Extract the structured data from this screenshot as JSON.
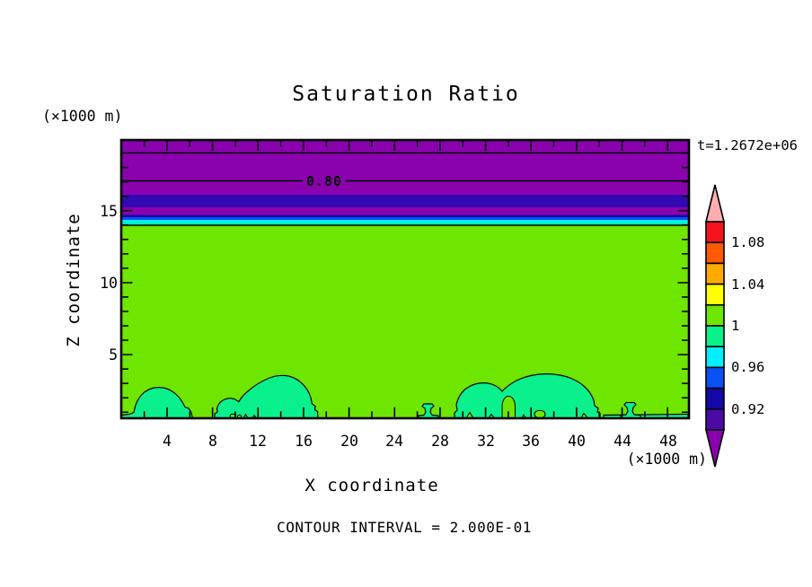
{
  "title": "Saturation Ratio",
  "time_label": "t=1.2672e+06",
  "footer_label": "CONTOUR INTERVAL = 2.000E-01",
  "contour_line_label": "0.80",
  "axes": {
    "x": {
      "label": "X coordinate",
      "units": "(×1000 m)",
      "ticks": [
        "4",
        "8",
        "12",
        "16",
        "20",
        "24",
        "28",
        "32",
        "36",
        "40",
        "44",
        "48"
      ]
    },
    "z": {
      "label": "Z coordinate",
      "units": "(×1000 m)",
      "ticks": [
        "15",
        "10",
        "5"
      ]
    }
  },
  "colorbar": {
    "labels": [
      "1.08",
      "1.04",
      "1",
      "0.96",
      "0.92"
    ]
  },
  "palette": {
    "pink_arrow": "#FFADB0",
    "red": "#F5141E",
    "orange_red": "#FF5A00",
    "orange": "#FFAA00",
    "yellow": "#FFFF00",
    "chartreuse": "#6EE600",
    "spring_green": "#0AF08C",
    "cyan": "#00EEFF",
    "blue": "#0A50F5",
    "navy": "#1508A8",
    "violet": "#4B0AA5",
    "purple_arrow": "#8A02AE",
    "plot_indigo_band": "#3208B0",
    "contour_line": "#000000"
  },
  "chart_data": {
    "type": "contour",
    "title": "Saturation Ratio",
    "xlabel": "X coordinate",
    "zlabel": "Z coordinate",
    "x_units": "×1000 m",
    "z_units": "×1000 m",
    "xlim": [
      0,
      50
    ],
    "zlim": [
      0.5,
      20
    ],
    "x_major_ticks": [
      4,
      8,
      12,
      16,
      20,
      24,
      28,
      32,
      36,
      40,
      44,
      48
    ],
    "x_minor_tick_step": 2,
    "z_major_ticks": [
      5,
      10,
      15
    ],
    "z_minor_tick_step": 1,
    "time_annotation": "t=1.2672e+06",
    "contour_interval": 0.2,
    "labeled_contours": [
      {
        "value": 0.8,
        "z": 17.1
      }
    ],
    "unlabeled_contours": [
      {
        "value": 0.6,
        "z": 19.1
      },
      {
        "value": 1.0,
        "z": 14.1
      }
    ],
    "colorbar": {
      "label_values": [
        1.08,
        1.04,
        1,
        0.96,
        0.92
      ],
      "segment_size": 0.02,
      "segments": [
        {
          "range": "> 1.10",
          "color": "#FFADB0",
          "shape": "arrow-up"
        },
        {
          "range": "1.08-1.10",
          "color": "#F5141E"
        },
        {
          "range": "1.06-1.08",
          "color": "#FF5A00"
        },
        {
          "range": "1.04-1.06",
          "color": "#FFAA00"
        },
        {
          "range": "1.02-1.04",
          "color": "#FFFF00"
        },
        {
          "range": "1.00-1.02",
          "color": "#6EE600"
        },
        {
          "range": "0.98-1.00",
          "color": "#0AF08C"
        },
        {
          "range": "0.96-0.98",
          "color": "#00EEFF"
        },
        {
          "range": "0.94-0.96",
          "color": "#0A50F5"
        },
        {
          "range": "0.92-0.94",
          "color": "#1508A8"
        },
        {
          "range": "0.90-0.92",
          "color": "#4B0AA5"
        },
        {
          "range": "< 0.90",
          "color": "#8A02AE",
          "shape": "arrow-down"
        }
      ]
    },
    "regions": {
      "top_bands": [
        {
          "z_range": [
            16.1,
            20.0
          ],
          "saturation": "< 0.90",
          "color": "#8A02AE"
        },
        {
          "z_range": [
            15.3,
            16.1
          ],
          "saturation": "0.90-0.92",
          "color": "#3208B0"
        },
        {
          "z_range": [
            14.7,
            15.3
          ],
          "saturation": "< 0.90",
          "color": "#8A02AE"
        },
        {
          "z_range": [
            14.4,
            14.7
          ],
          "saturation": "0.92-0.96 thin navy/blue strips",
          "color": "#0A50F5"
        },
        {
          "z_range": [
            14.1,
            14.4
          ],
          "saturation": "0.96-0.98",
          "color": "#00EEFF"
        }
      ],
      "main_body": {
        "z_range": [
          0.5,
          14.1
        ],
        "saturation": "1.00-1.02",
        "color": "#6EE600"
      },
      "bottom_blobs_saturation": "0.98-1.00",
      "bottom_blobs": [
        {
          "x_range": [
            0.0,
            6.3
          ],
          "peak_z": 2.7
        },
        {
          "x_range": [
            8.2,
            17.3
          ],
          "peak_z": 3.7
        },
        {
          "x_range": [
            26.2,
            27.9
          ],
          "peak_z": 1.3
        },
        {
          "x_range": [
            29.3,
            42.1
          ],
          "peak_z": 3.8
        },
        {
          "x_range": [
            43.9,
            45.6
          ],
          "peak_z": 1.4
        }
      ]
    }
  }
}
